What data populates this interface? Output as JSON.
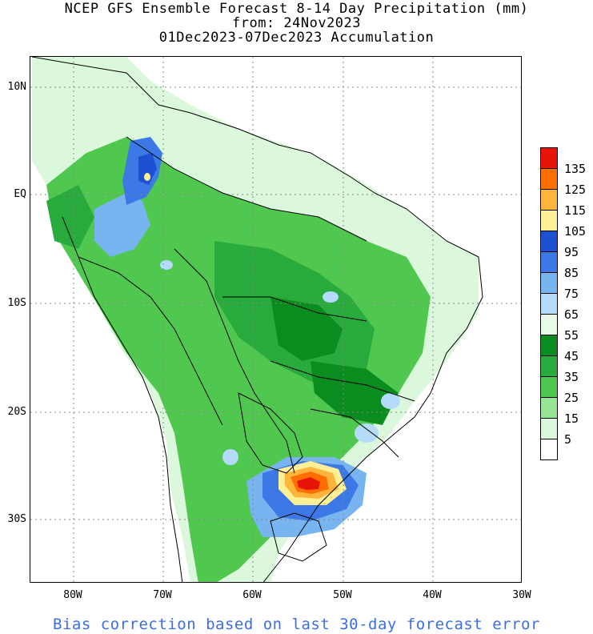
{
  "title": {
    "line1": "NCEP GFS Ensemble Forecast 8-14 Day Precipitation (mm)",
    "line2": "from: 24Nov2023",
    "line3": "01Dec2023-07Dec2023 Accumulation"
  },
  "axes": {
    "lat_labels": [
      "10N",
      "EQ",
      "10S",
      "20S",
      "30S"
    ],
    "lon_labels": [
      "80W",
      "70W",
      "60W",
      "50W",
      "40W",
      "30W"
    ]
  },
  "legend": {
    "labels": [
      "135",
      "125",
      "115",
      "105",
      "95",
      "85",
      "75",
      "65",
      "55",
      "45",
      "35",
      "25",
      "15",
      "5"
    ],
    "colors": [
      "#e8140a",
      "#ff6e00",
      "#ffb43c",
      "#fff096",
      "#1e50d2",
      "#3c78e6",
      "#78b4f0",
      "#b4dcfa",
      "#e6fae6",
      "#0a8c1e",
      "#28aa3c",
      "#50c850",
      "#96e696",
      "#dcf8dc",
      "#ffffff"
    ]
  },
  "map_colors": {
    "ocean": "#ffffff",
    "light": "#dcf8dc",
    "light_mid": "#96e696",
    "mid": "#50c850",
    "mid_dark": "#28aa3c",
    "dark": "#0a8c1e",
    "pale_blue": "#b4dcfa",
    "light_blue": "#78b4f0",
    "blue": "#3c78e6",
    "deep_blue": "#1e50d2",
    "yellow": "#fff096",
    "orange": "#ffb43c",
    "red_orange": "#ff6e00",
    "red": "#e8140a"
  },
  "footer": "Bias correction based on last 30-day forecast error"
}
